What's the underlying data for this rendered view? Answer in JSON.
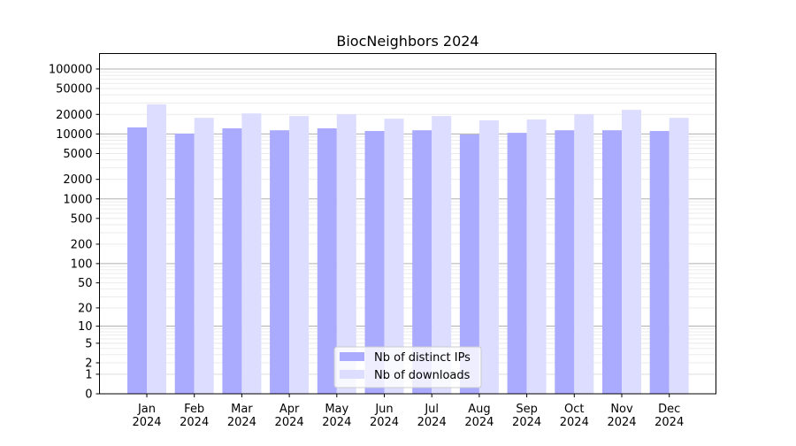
{
  "chart_data": {
    "type": "bar",
    "title": "BiocNeighbors 2024",
    "xlabel": "",
    "ylabel": "",
    "y_scale": "log(value+1)",
    "ylim": [
      0,
      173000
    ],
    "grid": true,
    "legend_position": "lower center",
    "categories": [
      "Jan\n2024",
      "Feb\n2024",
      "Mar\n2024",
      "Apr\n2024",
      "May\n2024",
      "Jun\n2024",
      "Jul\n2024",
      "Aug\n2024",
      "Sep\n2024",
      "Oct\n2024",
      "Nov\n2024",
      "Dec\n2024"
    ],
    "y_ticks": [
      0,
      1,
      2,
      5,
      10,
      20,
      50,
      100,
      200,
      500,
      1000,
      2000,
      5000,
      10000,
      20000,
      50000,
      100000
    ],
    "series": [
      {
        "name": "Nb of distinct IPs",
        "color": "#aaaaff",
        "values": [
          12600,
          10100,
          12200,
          11400,
          12200,
          11100,
          11400,
          9800,
          10400,
          11400,
          11400,
          11100
        ]
      },
      {
        "name": "Nb of downloads",
        "color": "#ddddff",
        "values": [
          28600,
          17700,
          20700,
          18900,
          20100,
          17200,
          18900,
          16200,
          16700,
          20100,
          23500,
          17700
        ]
      }
    ]
  }
}
